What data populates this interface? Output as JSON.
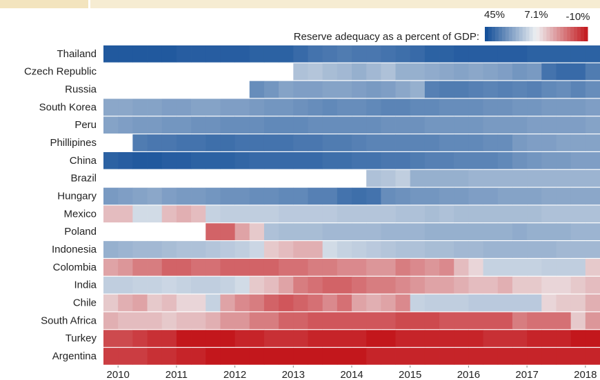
{
  "chart_data": {
    "type": "heatmap",
    "colorbar": {
      "label": "Reserve adequacy as a percent of GDP:",
      "ticks": [
        {
          "value": 45,
          "label": "45%"
        },
        {
          "value": 7.1,
          "label": "7.1%"
        },
        {
          "value": -10,
          "label": "-10%"
        }
      ],
      "colors": [
        "#0f4c97",
        "#eef0f2",
        "#c3171c"
      ]
    },
    "x": [
      2009.75,
      2010,
      2010.25,
      2010.5,
      2010.75,
      2011,
      2011.25,
      2011.5,
      2011.75,
      2012,
      2012.25,
      2012.5,
      2012.75,
      2013,
      2013.25,
      2013.5,
      2013.75,
      2014,
      2014.25,
      2014.5,
      2014.75,
      2015,
      2015.25,
      2015.5,
      2015.75,
      2016,
      2016.25,
      2016.5,
      2016.75,
      2017,
      2017.25,
      2017.5,
      2017.75,
      2018
    ],
    "xlim": [
      2009.75,
      2018.25
    ],
    "xticks": [
      2010,
      2011,
      2012,
      2013,
      2014,
      2015,
      2016,
      2017,
      2018
    ],
    "series": [
      {
        "name": "Thailand",
        "values": [
          42,
          42,
          42,
          42,
          42,
          41,
          41,
          41,
          41,
          41,
          40,
          40,
          40,
          38,
          36,
          35,
          34,
          35,
          35,
          36,
          37,
          38,
          40,
          40,
          41,
          41,
          41,
          41,
          41,
          40,
          40,
          40,
          40,
          40
        ]
      },
      {
        "name": "Czech Republic",
        "values": [
          null,
          null,
          null,
          null,
          null,
          null,
          null,
          null,
          null,
          null,
          null,
          null,
          null,
          18,
          17,
          19,
          20,
          22,
          20,
          18,
          22,
          22,
          23,
          24,
          25,
          24,
          25,
          26,
          28,
          27,
          36,
          38,
          38,
          34
        ]
      },
      {
        "name": "Russia",
        "values": [
          null,
          null,
          null,
          null,
          null,
          null,
          null,
          null,
          null,
          null,
          30,
          28,
          25,
          26,
          26,
          25,
          25,
          26,
          27,
          26,
          24,
          22,
          33,
          34,
          34,
          33,
          32,
          33,
          32,
          33,
          31,
          30,
          32,
          30
        ]
      },
      {
        "name": "South Korea",
        "values": [
          24,
          24,
          25,
          25,
          26,
          26,
          25,
          25,
          26,
          26,
          27,
          28,
          28,
          29,
          30,
          31,
          30,
          30,
          31,
          32,
          32,
          31,
          31,
          30,
          30,
          30,
          29,
          29,
          28,
          28,
          27,
          27,
          27,
          26
        ]
      },
      {
        "name": "Peru",
        "values": [
          25,
          26,
          27,
          27,
          28,
          28,
          29,
          29,
          30,
          30,
          30,
          31,
          31,
          31,
          30,
          30,
          30,
          30,
          30,
          29,
          29,
          29,
          28,
          28,
          28,
          28,
          27,
          27,
          27,
          26,
          26,
          26,
          26,
          25
        ]
      },
      {
        "name": "Phillipines",
        "values": [
          null,
          null,
          34,
          35,
          35,
          36,
          36,
          37,
          37,
          36,
          36,
          36,
          36,
          35,
          35,
          34,
          34,
          33,
          32,
          32,
          32,
          32,
          32,
          31,
          31,
          31,
          30,
          30,
          27,
          26,
          26,
          25,
          25,
          25
        ]
      },
      {
        "name": "China",
        "values": [
          40,
          41,
          42,
          42,
          41,
          41,
          40,
          40,
          40,
          39,
          38,
          38,
          38,
          38,
          38,
          37,
          37,
          36,
          36,
          35,
          35,
          34,
          33,
          33,
          32,
          32,
          32,
          31,
          29,
          28,
          27,
          27,
          26,
          26
        ]
      },
      {
        "name": "Brazil",
        "values": [
          null,
          null,
          null,
          null,
          null,
          null,
          null,
          null,
          null,
          null,
          null,
          null,
          null,
          null,
          null,
          null,
          null,
          null,
          18,
          17,
          15,
          22,
          22,
          22,
          22,
          21,
          21,
          21,
          21,
          21,
          21,
          21,
          21,
          21
        ]
      },
      {
        "name": "Hungary",
        "values": [
          27,
          26,
          25,
          24,
          26,
          27,
          27,
          28,
          29,
          29,
          30,
          30,
          31,
          31,
          33,
          33,
          36,
          37,
          36,
          30,
          29,
          28,
          28,
          27,
          27,
          26,
          26,
          25,
          25,
          25,
          24,
          24,
          24,
          24
        ]
      },
      {
        "name": "Mexico",
        "values": [
          3,
          3,
          12,
          12,
          3,
          2,
          3,
          14,
          15,
          15,
          15,
          15,
          16,
          16,
          16,
          16,
          17,
          17,
          17,
          17,
          18,
          18,
          19,
          18,
          19,
          19,
          19,
          19,
          19,
          19,
          18,
          18,
          18,
          18
        ]
      },
      {
        "name": "Poland",
        "values": [
          null,
          null,
          null,
          null,
          null,
          null,
          null,
          -4,
          -4,
          1,
          4,
          18,
          19,
          19,
          19,
          20,
          20,
          20,
          20,
          21,
          21,
          21,
          22,
          22,
          22,
          22,
          22,
          22,
          23,
          22,
          22,
          22,
          21,
          21
        ]
      },
      {
        "name": "Indonesia",
        "values": [
          22,
          21,
          20,
          20,
          19,
          18,
          18,
          17,
          16,
          15,
          13,
          4,
          3,
          2,
          2,
          12,
          14,
          15,
          16,
          17,
          18,
          18,
          19,
          19,
          20,
          20,
          21,
          21,
          21,
          21,
          21,
          20,
          20,
          20
        ]
      },
      {
        "name": "Colombia",
        "values": [
          1,
          0,
          -2,
          -2,
          -4,
          -4,
          -3,
          -3,
          -4,
          -4,
          -4,
          -4,
          -3,
          -3,
          -2,
          -2,
          -1,
          -1,
          0,
          0,
          -2,
          -1,
          0,
          -1,
          3,
          5,
          14,
          14,
          14,
          14,
          15,
          15,
          15,
          4
        ]
      },
      {
        "name": "India",
        "values": [
          15,
          15,
          14,
          14,
          13,
          14,
          15,
          15,
          14,
          12,
          4,
          3,
          1,
          -2,
          -3,
          -4,
          -4,
          -3,
          -2,
          -2,
          -1,
          0,
          1,
          1,
          2,
          3,
          3,
          2,
          4,
          4,
          5,
          5,
          4,
          3
        ]
      },
      {
        "name": "Chile",
        "values": [
          4,
          2,
          1,
          4,
          3,
          5,
          5,
          14,
          1,
          -1,
          -2,
          -4,
          -5,
          -4,
          -3,
          -1,
          -3,
          1,
          2,
          1,
          -1,
          14,
          15,
          15,
          15,
          16,
          16,
          16,
          16,
          16,
          5,
          4,
          4,
          2
        ]
      },
      {
        "name": "South Africa",
        "values": [
          2,
          3,
          3,
          3,
          4,
          3,
          3,
          2,
          0,
          0,
          -2,
          -2,
          -4,
          -4,
          -5,
          -5,
          -5,
          -5,
          -5,
          -5,
          -6,
          -6,
          -6,
          -5,
          -5,
          -5,
          -5,
          -5,
          -2,
          -3,
          -3,
          -3,
          4,
          0
        ]
      },
      {
        "name": "Turkey",
        "values": [
          -6,
          -6,
          -7,
          -8,
          -8,
          -10,
          -10,
          -10,
          -10,
          -9,
          -9,
          -8,
          -8,
          -8,
          -9,
          -9,
          -9,
          -9,
          -10,
          -10,
          -9,
          -9,
          -9,
          -9,
          -9,
          -9,
          -8,
          -8,
          -8,
          -9,
          -9,
          -9,
          -10,
          -10
        ]
      },
      {
        "name": "Argentina",
        "values": [
          -7,
          -7,
          -7,
          -8,
          -8,
          -9,
          -9,
          -10,
          -10,
          -10,
          -10,
          -10,
          -10,
          -10,
          -10,
          -10,
          -10,
          -10,
          -9,
          -9,
          -9,
          -9,
          -9,
          -9,
          -9,
          -9,
          -9,
          -9,
          -9,
          -9,
          -9,
          -9,
          -9,
          -9
        ]
      }
    ]
  }
}
